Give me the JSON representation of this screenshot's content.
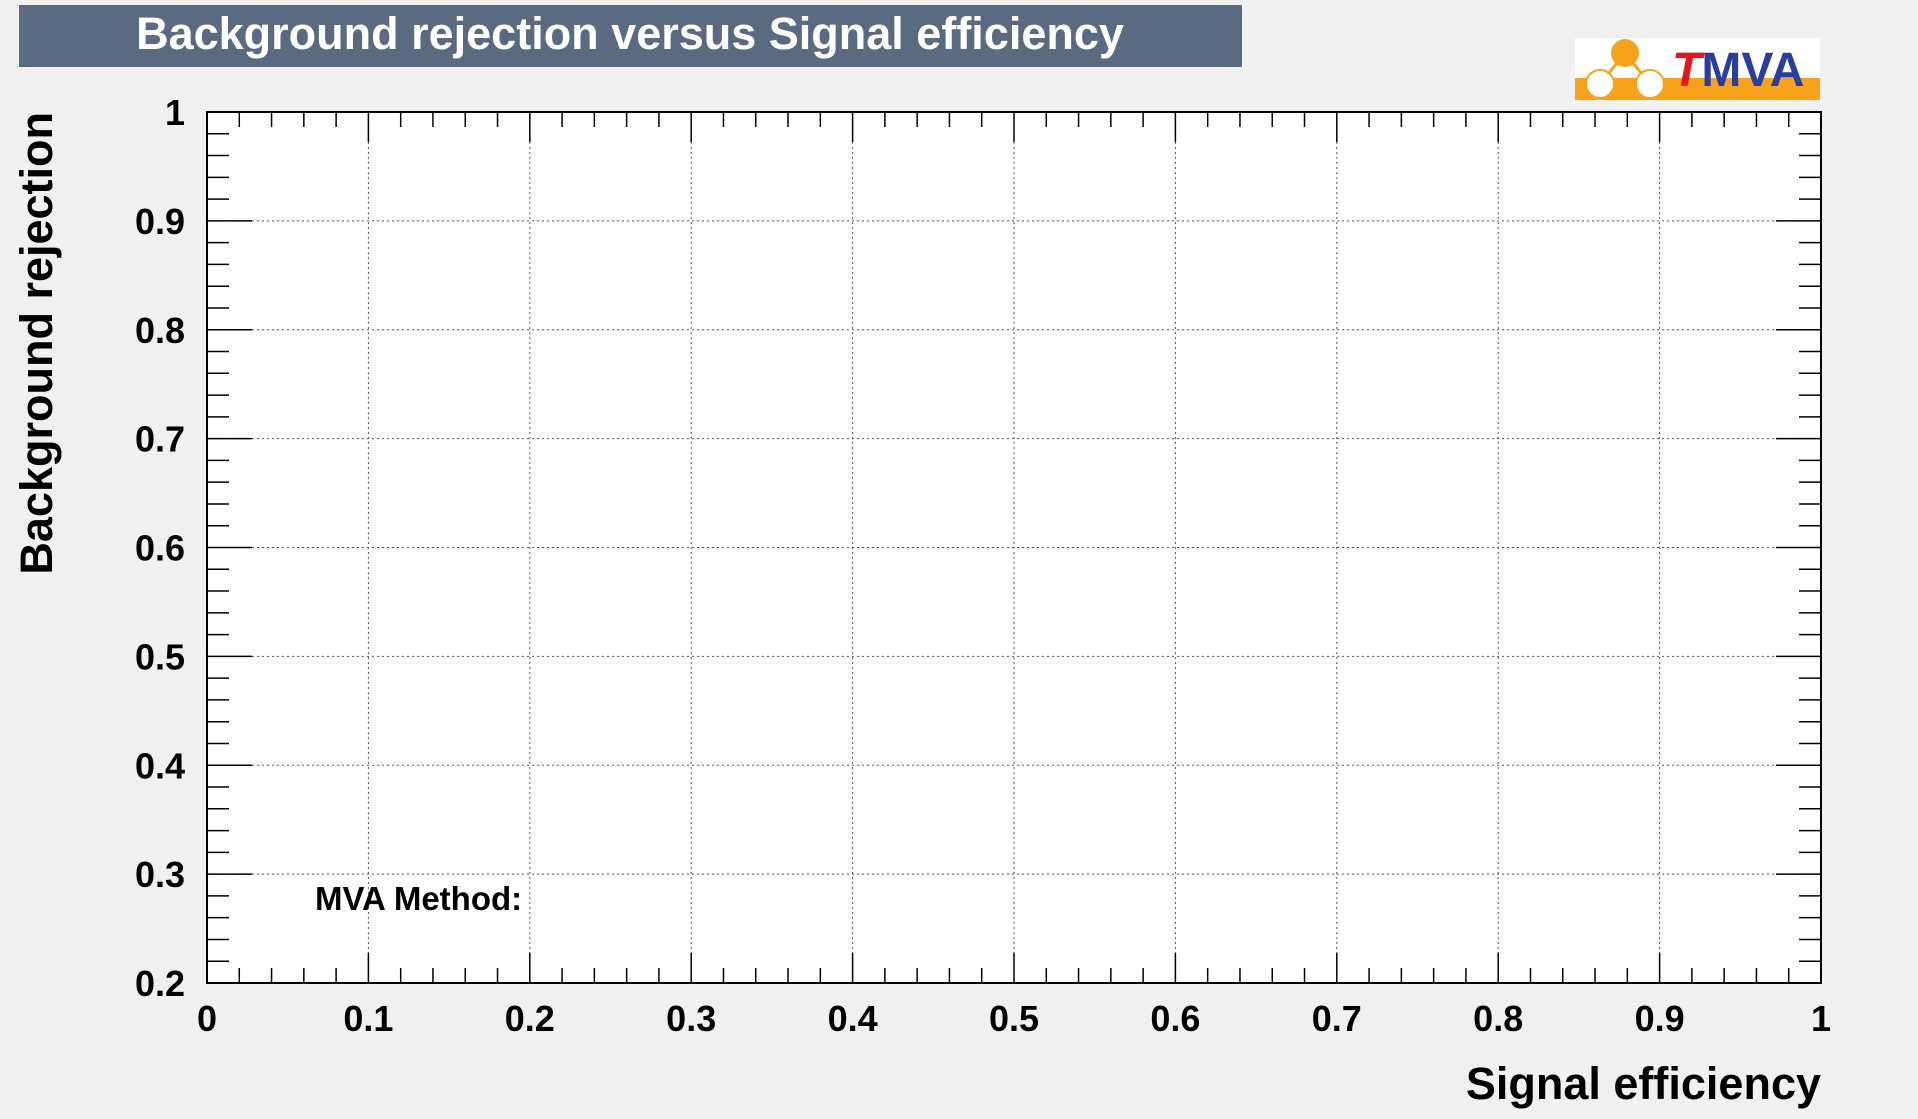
{
  "chart_data": {
    "type": "line",
    "title": "Background rejection versus Signal efficiency",
    "xlabel": "Signal efficiency",
    "ylabel": "Background rejection",
    "xlim": [
      0,
      1
    ],
    "ylim": [
      0.2,
      1
    ],
    "x_ticks": [
      "0",
      "0.1",
      "0.2",
      "0.3",
      "0.4",
      "0.5",
      "0.6",
      "0.7",
      "0.8",
      "0.9",
      "1"
    ],
    "y_ticks": [
      "0.2",
      "0.3",
      "0.4",
      "0.5",
      "0.6",
      "0.7",
      "0.8",
      "0.9",
      "1"
    ],
    "grid": true,
    "series": [],
    "legend": {
      "header": "MVA Method:",
      "placement": "bottom-left"
    }
  },
  "logo": {
    "text_t": "T",
    "text_mva": "MVA",
    "accent_color": "#f7a21b",
    "t_color": "#e8151b",
    "mva_color": "#2b3d9e"
  },
  "colors": {
    "title_background": "#5a6a80",
    "page_background": "#f0f0f0",
    "plot_background": "#ffffff"
  }
}
